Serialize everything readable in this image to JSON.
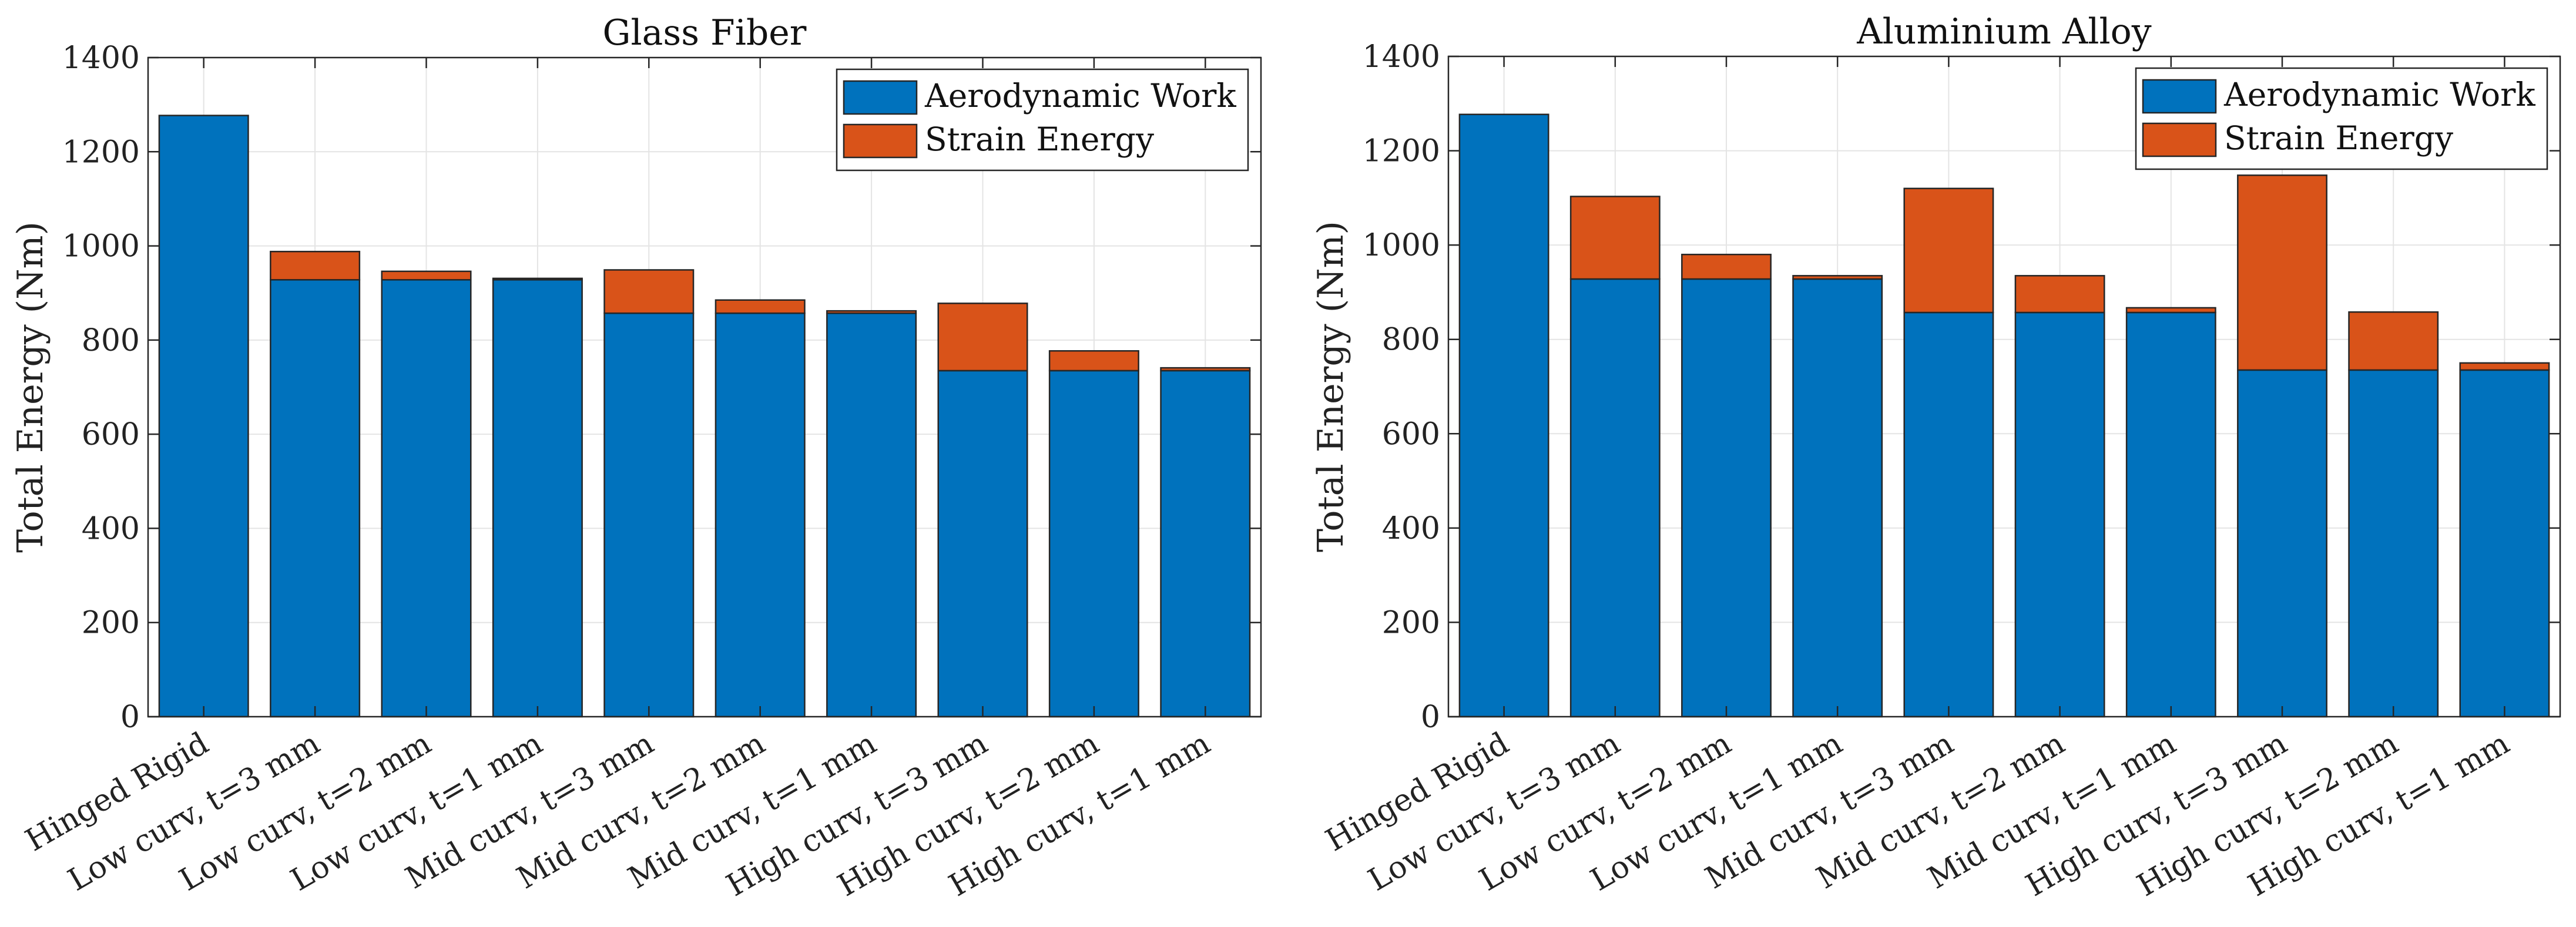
{
  "colors": {
    "aero": "#0072BD",
    "strain": "#D95319"
  },
  "chart_data": [
    {
      "type": "bar",
      "stacked": true,
      "title": "Glass Fiber",
      "ylabel": "Total Energy (Nm)",
      "xlabel": "",
      "ylim": [
        0,
        1400
      ],
      "yticks": [
        0,
        200,
        400,
        600,
        800,
        1000,
        1200,
        1400
      ],
      "grid": true,
      "legend_location": "top-right",
      "categories": [
        "Hinged Rigid",
        "Low curv, t=3 mm",
        "Low curv, t=2 mm",
        "Low curv, t=1 mm",
        "Mid curv, t=3 mm",
        "Mid curv, t=2 mm",
        "Mid curv, t=1 mm",
        "High curv, t=3 mm",
        "High curv, t=2 mm",
        "High curv, t=1 mm"
      ],
      "series": [
        {
          "name": "Aerodynamic Work",
          "color_key": "aero",
          "values": [
            1277,
            928,
            928,
            928,
            857,
            857,
            857,
            735,
            735,
            735
          ]
        },
        {
          "name": "Strain Energy",
          "color_key": "strain",
          "values": [
            0,
            60,
            18,
            3,
            92,
            28,
            5,
            143,
            42,
            6
          ]
        }
      ]
    },
    {
      "type": "bar",
      "stacked": true,
      "title": "Aluminium Alloy",
      "ylabel": "Total Energy (Nm)",
      "xlabel": "",
      "ylim": [
        0,
        1400
      ],
      "yticks": [
        0,
        200,
        400,
        600,
        800,
        1000,
        1200,
        1400
      ],
      "grid": true,
      "legend_location": "top-right",
      "categories": [
        "Hinged Rigid",
        "Low curv, t=3 mm",
        "Low curv, t=2 mm",
        "Low curv, t=1 mm",
        "Mid curv, t=3 mm",
        "Mid curv, t=2 mm",
        "Mid curv, t=1 mm",
        "High curv, t=3 mm",
        "High curv, t=2 mm",
        "High curv, t=1 mm"
      ],
      "series": [
        {
          "name": "Aerodynamic Work",
          "color_key": "aero",
          "values": [
            1277,
            928,
            928,
            928,
            857,
            857,
            857,
            735,
            735,
            735
          ]
        },
        {
          "name": "Strain Energy",
          "color_key": "strain",
          "values": [
            0,
            175,
            52,
            7,
            263,
            78,
            10,
            413,
            123,
            15
          ]
        }
      ]
    }
  ]
}
